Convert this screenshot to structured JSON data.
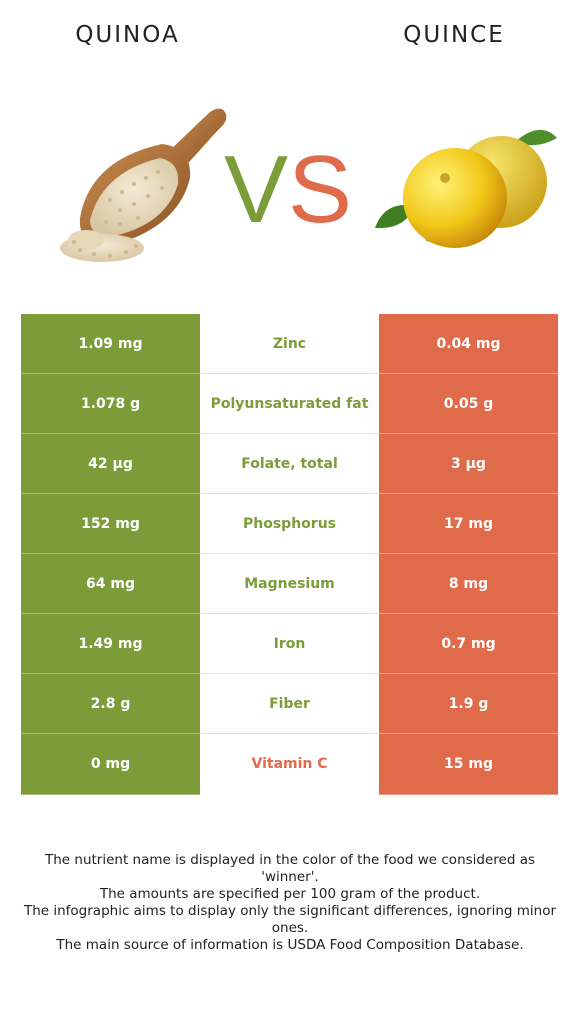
{
  "header": {
    "left_food": "QUINOA",
    "right_food": "QUINCE",
    "vs_left_letter": "V",
    "vs_right_letter": "S"
  },
  "colors": {
    "left_food": "#7c9c3a",
    "right_food": "#e06b4b"
  },
  "images": {
    "left": "quinoa-scoop-illustration",
    "right": "quince-fruit-illustration"
  },
  "rows": [
    {
      "left": "1.09 mg",
      "nutrient": "Zinc",
      "right": "0.04 mg",
      "winner": "left"
    },
    {
      "left": "1.078 g",
      "nutrient": "Polyunsaturated fat",
      "right": "0.05 g",
      "winner": "left"
    },
    {
      "left": "42 µg",
      "nutrient": "Folate, total",
      "right": "3 µg",
      "winner": "left"
    },
    {
      "left": "152 mg",
      "nutrient": "Phosphorus",
      "right": "17 mg",
      "winner": "left"
    },
    {
      "left": "64 mg",
      "nutrient": "Magnesium",
      "right": "8 mg",
      "winner": "left"
    },
    {
      "left": "1.49 mg",
      "nutrient": "Iron",
      "right": "0.7 mg",
      "winner": "left"
    },
    {
      "left": "2.8 g",
      "nutrient": "Fiber",
      "right": "1.9 g",
      "winner": "left"
    },
    {
      "left": "0 mg",
      "nutrient": "Vitamin C",
      "right": "15 mg",
      "winner": "right"
    }
  ],
  "footnote": {
    "line1": "The nutrient name is displayed in the color of the food we considered as 'winner'.",
    "line2": "The amounts are specified per 100 gram of the product.",
    "line3": "The infographic aims to display only the significant differences, ignoring minor ones.",
    "line4": "The main source of information is USDA Food Composition Database."
  }
}
